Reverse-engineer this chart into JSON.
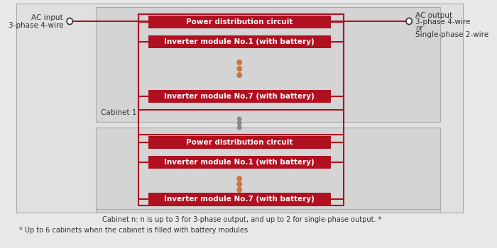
{
  "bg_outer": "#e8e8e8",
  "bg_cabinet": "#d8d8d8",
  "red_fill": "#B01020",
  "red_line": "#B01020",
  "gray_border": "#aaaaaa",
  "dot_orange": "#C87941",
  "dot_gray": "#888888",
  "text_white": "#ffffff",
  "text_dark": "#333333",
  "cabinet1_label": "Cabinet 1",
  "cabinetN_note": "Cabinet n: n is up to 3 for 3-phase output, and up to 2 for single-phase output. *",
  "footnote": "* Up to 6 cabinets when the cabinet is filled with battery modules.",
  "ac_input_1": "AC input",
  "ac_input_2": "3-phase 4-wire",
  "ac_output_1": "AC output",
  "ac_output_2": "3-phase 4-wire",
  "ac_output_3": "or",
  "ac_output_4": "Single-phase 2-wire",
  "pdc_label": "Power distribution circuit",
  "inv1_label": "Inverter module No.1 (with battery)",
  "inv7_label": "Inverter module No.7 (with battery)"
}
